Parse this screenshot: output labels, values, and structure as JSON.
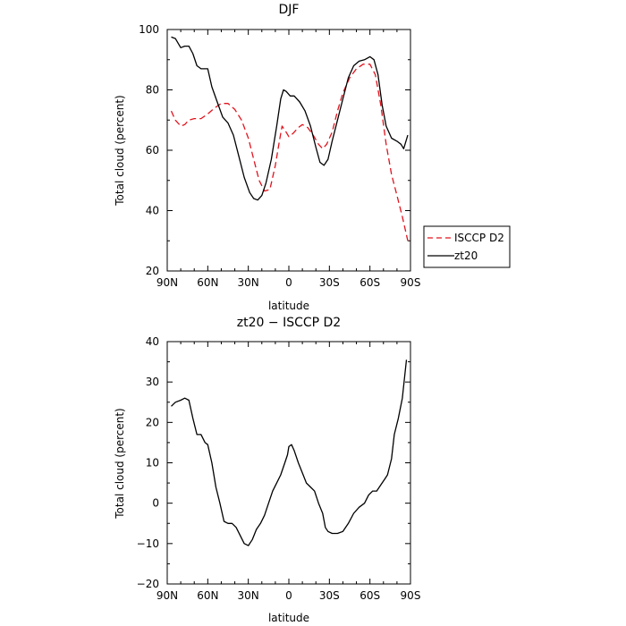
{
  "chart_data": [
    {
      "type": "line",
      "title": "DJF",
      "xlabel": "latitude",
      "ylabel": "Total cloud (percent)",
      "xlim": [
        -90,
        90
      ],
      "ylim": [
        20,
        100
      ],
      "x_ticks": [
        -90,
        -60,
        -30,
        0,
        30,
        60,
        90
      ],
      "x_tick_labels": [
        "90N",
        "60N",
        "30N",
        "0",
        "30S",
        "60S",
        "90S"
      ],
      "y_ticks": [
        20,
        40,
        60,
        80,
        100
      ],
      "y_tick_labels": [
        "20",
        "40",
        "60",
        "80",
        "100"
      ],
      "legend_position": "right",
      "series": [
        {
          "name": "ISCCP D2",
          "color": "#e0141e",
          "dash": "dashed",
          "points": [
            [
              -87,
              73
            ],
            [
              -84,
              70
            ],
            [
              -80,
              68
            ],
            [
              -77,
              68.5
            ],
            [
              -74,
              70
            ],
            [
              -70,
              70.5
            ],
            [
              -65,
              70.5
            ],
            [
              -60,
              72
            ],
            [
              -55,
              74
            ],
            [
              -50,
              75.5
            ],
            [
              -45,
              75.5
            ],
            [
              -40,
              73.5
            ],
            [
              -35,
              70
            ],
            [
              -30,
              64
            ],
            [
              -26,
              57
            ],
            [
              -22,
              50
            ],
            [
              -18,
              46.5
            ],
            [
              -14,
              47
            ],
            [
              -10,
              55
            ],
            [
              -7,
              63
            ],
            [
              -5,
              68
            ],
            [
              -2,
              66
            ],
            [
              0,
              64.5
            ],
            [
              3,
              65.5
            ],
            [
              7,
              67.5
            ],
            [
              10,
              68.5
            ],
            [
              14,
              67.5
            ],
            [
              18,
              65
            ],
            [
              22,
              62
            ],
            [
              25,
              60.5
            ],
            [
              28,
              62
            ],
            [
              32,
              66
            ],
            [
              36,
              73
            ],
            [
              40,
              79
            ],
            [
              45,
              84
            ],
            [
              50,
              87
            ],
            [
              55,
              88.5
            ],
            [
              60,
              88.5
            ],
            [
              64,
              85
            ],
            [
              68,
              75
            ],
            [
              72,
              62
            ],
            [
              76,
              52
            ],
            [
              80,
              45
            ],
            [
              84,
              38
            ],
            [
              88,
              30
            ]
          ]
        },
        {
          "name": "zt20",
          "color": "#000000",
          "dash": "solid",
          "points": [
            [
              -87,
              97.5
            ],
            [
              -84,
              97
            ],
            [
              -80,
              94
            ],
            [
              -77,
              94.5
            ],
            [
              -74,
              94.5
            ],
            [
              -71,
              92
            ],
            [
              -68,
              88
            ],
            [
              -65,
              87
            ],
            [
              -60,
              87
            ],
            [
              -57,
              81
            ],
            [
              -53,
              76
            ],
            [
              -49,
              71
            ],
            [
              -45,
              69
            ],
            [
              -41,
              65
            ],
            [
              -37,
              58
            ],
            [
              -33,
              51
            ],
            [
              -29,
              46
            ],
            [
              -26,
              44
            ],
            [
              -23,
              43.5
            ],
            [
              -20,
              45
            ],
            [
              -17,
              49
            ],
            [
              -13,
              57
            ],
            [
              -9,
              68
            ],
            [
              -6,
              77
            ],
            [
              -4,
              80
            ],
            [
              -2,
              79.5
            ],
            [
              1,
              78
            ],
            [
              4,
              78
            ],
            [
              8,
              76
            ],
            [
              12,
              73
            ],
            [
              16,
              68
            ],
            [
              20,
              61
            ],
            [
              23,
              56
            ],
            [
              26,
              55
            ],
            [
              29,
              57
            ],
            [
              32,
              63
            ],
            [
              36,
              70
            ],
            [
              40,
              77
            ],
            [
              44,
              84
            ],
            [
              48,
              88
            ],
            [
              52,
              89.5
            ],
            [
              56,
              90
            ],
            [
              60,
              91
            ],
            [
              63,
              90
            ],
            [
              66,
              85
            ],
            [
              69,
              75
            ],
            [
              72,
              68
            ],
            [
              76,
              64
            ],
            [
              80,
              63
            ],
            [
              83,
              62
            ],
            [
              85,
              60.5
            ],
            [
              88,
              65
            ]
          ]
        }
      ]
    },
    {
      "type": "line",
      "title": "zt20 − ISCCP D2",
      "xlabel": "latitude",
      "ylabel": "Total cloud (percent)",
      "xlim": [
        -90,
        90
      ],
      "ylim": [
        -20,
        40
      ],
      "x_ticks": [
        -90,
        -60,
        -30,
        0,
        30,
        60,
        90
      ],
      "x_tick_labels": [
        "90N",
        "60N",
        "30N",
        "0",
        "30S",
        "60S",
        "90S"
      ],
      "y_ticks": [
        -20,
        -10,
        0,
        10,
        20,
        30,
        40
      ],
      "y_tick_labels": [
        "−20",
        "−10",
        "0",
        "10",
        "20",
        "30",
        "40"
      ],
      "series": [
        {
          "color": "#000000",
          "dash": "solid",
          "points": [
            [
              -87,
              24
            ],
            [
              -84,
              25
            ],
            [
              -80,
              25.5
            ],
            [
              -77,
              26
            ],
            [
              -74,
              25.5
            ],
            [
              -71,
              21
            ],
            [
              -68,
              17
            ],
            [
              -65,
              17
            ],
            [
              -62,
              15
            ],
            [
              -60,
              14.5
            ],
            [
              -57,
              10
            ],
            [
              -54,
              4
            ],
            [
              -51,
              0
            ],
            [
              -48,
              -4.5
            ],
            [
              -45,
              -5
            ],
            [
              -42,
              -5
            ],
            [
              -39,
              -6
            ],
            [
              -36,
              -8
            ],
            [
              -33,
              -10
            ],
            [
              -30,
              -10.5
            ],
            [
              -27,
              -9
            ],
            [
              -24,
              -6.5
            ],
            [
              -21,
              -5
            ],
            [
              -18,
              -3
            ],
            [
              -15,
              0
            ],
            [
              -12,
              3
            ],
            [
              -9,
              5
            ],
            [
              -6,
              7
            ],
            [
              -3,
              10
            ],
            [
              -1,
              12
            ],
            [
              0,
              14
            ],
            [
              2,
              14.5
            ],
            [
              4,
              13
            ],
            [
              7,
              10
            ],
            [
              10,
              7.5
            ],
            [
              13,
              5
            ],
            [
              16,
              4
            ],
            [
              19,
              3
            ],
            [
              22,
              0
            ],
            [
              25,
              -2.5
            ],
            [
              27,
              -6
            ],
            [
              29,
              -7
            ],
            [
              32,
              -7.5
            ],
            [
              36,
              -7.5
            ],
            [
              40,
              -7
            ],
            [
              44,
              -5
            ],
            [
              48,
              -2.5
            ],
            [
              52,
              -1
            ],
            [
              56,
              0
            ],
            [
              59,
              2
            ],
            [
              62,
              3
            ],
            [
              65,
              3
            ],
            [
              68,
              4.5
            ],
            [
              71,
              6
            ],
            [
              73,
              7
            ],
            [
              76,
              11
            ],
            [
              78,
              17
            ],
            [
              81,
              21
            ],
            [
              84,
              26
            ],
            [
              87,
              35.5
            ]
          ]
        }
      ]
    }
  ]
}
